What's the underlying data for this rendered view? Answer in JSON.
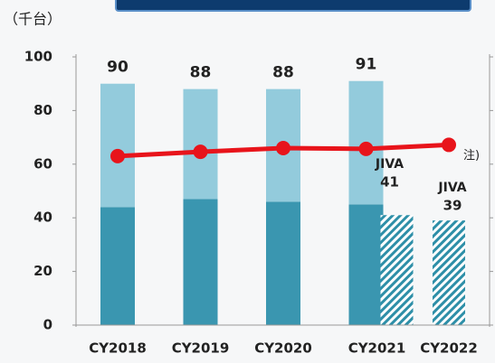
{
  "chart_data": {
    "type": "bar",
    "unit_label": "（千台）",
    "categories": [
      "CY2018",
      "CY2019",
      "CY2020",
      "CY2021",
      "CY2022"
    ],
    "series": [
      {
        "color": "#3a96b0",
        "values": [
          44,
          47,
          46,
          45,
          null
        ]
      },
      {
        "color": "#93cbdc",
        "values": [
          46,
          41,
          42,
          46,
          null
        ]
      }
    ],
    "totals": [
      90,
      88,
      88,
      91,
      null
    ],
    "jiva": {
      "label": "JIVA",
      "color": "#2e8fa8",
      "values": [
        null,
        null,
        null,
        41,
        39
      ]
    },
    "line": {
      "type": "line",
      "color": "#e8141b",
      "values": [
        63,
        64.6,
        66,
        65.7,
        67.2
      ]
    },
    "annotation": "注)",
    "ylim": [
      0,
      100
    ],
    "yticks": [
      0,
      20,
      40,
      60,
      80,
      100
    ]
  }
}
